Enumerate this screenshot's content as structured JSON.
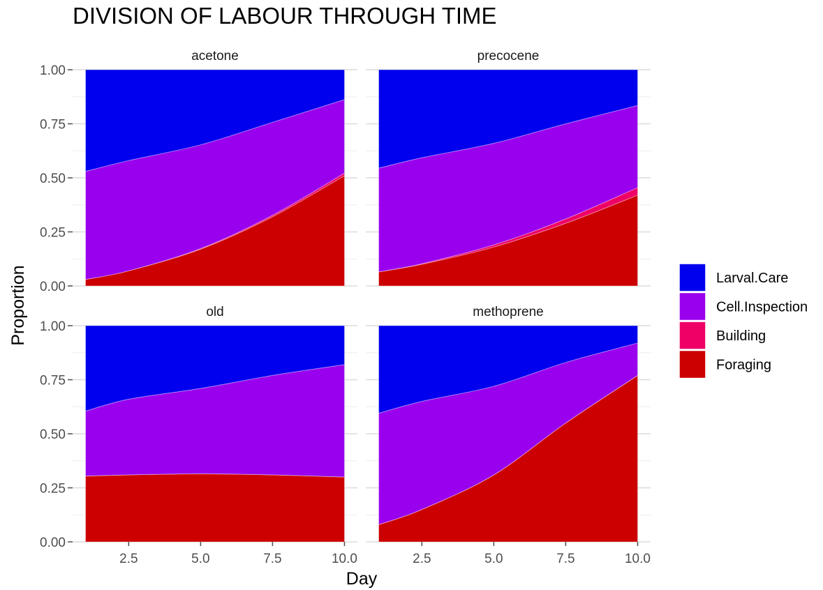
{
  "chart_data": {
    "type": "area",
    "title": "DIVISION OF LABOUR THROUGH TIME",
    "xlabel": "Day",
    "ylabel": "Proportion",
    "xlim": [
      1,
      10
    ],
    "ylim": [
      0,
      1
    ],
    "x_ticks": [
      "2.5",
      "5.0",
      "7.5",
      "10.0"
    ],
    "y_ticks": [
      "0.00",
      "0.25",
      "0.50",
      "0.75",
      "1.00"
    ],
    "stacked": true,
    "grid": true,
    "legend_position": "right",
    "legend": [
      {
        "name": "Larval.Care",
        "color": "#0000EE"
      },
      {
        "name": "Cell.Inspection",
        "color": "#9900EE"
      },
      {
        "name": "Building",
        "color": "#EE0066"
      },
      {
        "name": "Foraging",
        "color": "#CC0000"
      }
    ],
    "x": [
      1,
      2.5,
      5,
      7.5,
      10
    ],
    "panels": [
      {
        "name": "acetone",
        "series": [
          {
            "name": "Foraging",
            "values": [
              0.03,
              0.07,
              0.17,
              0.32,
              0.51
            ]
          },
          {
            "name": "Building",
            "values": [
              0.0,
              0.0,
              0.003,
              0.007,
              0.012
            ]
          },
          {
            "name": "Cell.Inspection",
            "values": [
              0.5,
              0.51,
              0.48,
              0.43,
              0.34
            ]
          },
          {
            "name": "Larval.Care",
            "values": [
              0.47,
              0.42,
              0.347,
              0.243,
              0.138
            ]
          }
        ]
      },
      {
        "name": "precocene",
        "series": [
          {
            "name": "Foraging",
            "values": [
              0.065,
              0.1,
              0.18,
              0.29,
              0.42
            ]
          },
          {
            "name": "Building",
            "values": [
              0.0,
              0.003,
              0.01,
              0.02,
              0.035
            ]
          },
          {
            "name": "Cell.Inspection",
            "values": [
              0.48,
              0.49,
              0.47,
              0.44,
              0.38
            ]
          },
          {
            "name": "Larval.Care",
            "values": [
              0.455,
              0.407,
              0.34,
              0.25,
              0.165
            ]
          }
        ]
      },
      {
        "name": "old",
        "series": [
          {
            "name": "Foraging",
            "values": [
              0.305,
              0.31,
              0.315,
              0.31,
              0.3
            ]
          },
          {
            "name": "Building",
            "values": [
              0.0,
              0.0,
              0.0,
              0.0,
              0.0
            ]
          },
          {
            "name": "Cell.Inspection",
            "values": [
              0.3,
              0.35,
              0.395,
              0.46,
              0.52
            ]
          },
          {
            "name": "Larval.Care",
            "values": [
              0.395,
              0.34,
              0.29,
              0.23,
              0.18
            ]
          }
        ]
      },
      {
        "name": "methoprene",
        "series": [
          {
            "name": "Foraging",
            "values": [
              0.08,
              0.15,
              0.31,
              0.55,
              0.77
            ]
          },
          {
            "name": "Building",
            "values": [
              0.0,
              0.0,
              0.0,
              0.0,
              0.0
            ]
          },
          {
            "name": "Cell.Inspection",
            "values": [
              0.515,
              0.5,
              0.41,
              0.28,
              0.15
            ]
          },
          {
            "name": "Larval.Care",
            "values": [
              0.405,
              0.35,
              0.28,
              0.17,
              0.08
            ]
          }
        ]
      }
    ]
  }
}
